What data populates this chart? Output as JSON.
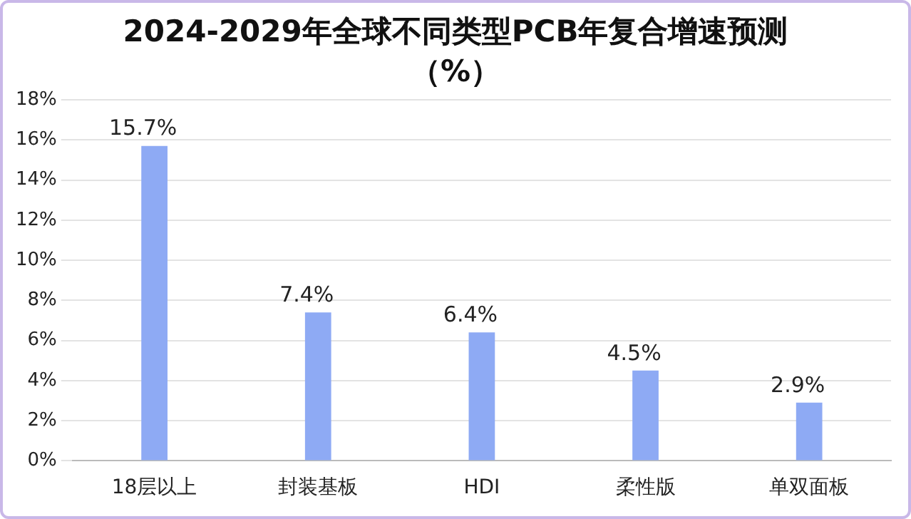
{
  "chart_data": {
    "type": "bar",
    "title": "2024-2029年全球不同类型PCB年复合增速预测（%）",
    "categories": [
      "18层以上",
      "封装基板",
      "HDI",
      "柔性版",
      "单双面板"
    ],
    "values": [
      15.7,
      7.4,
      6.4,
      4.5,
      2.9
    ],
    "value_labels": [
      "15.7%",
      "7.4%",
      "6.4%",
      "4.5%",
      "2.9%"
    ],
    "color": "#8eaaf4",
    "ylim": [
      0,
      18
    ],
    "yticks": [
      {
        "value": 0,
        "label": "0%"
      },
      {
        "value": 2,
        "label": "2%"
      },
      {
        "value": 4,
        "label": "4%"
      },
      {
        "value": 6,
        "label": "6%"
      },
      {
        "value": 8,
        "label": "8%"
      },
      {
        "value": 10,
        "label": "10%"
      },
      {
        "value": 12,
        "label": "12%"
      },
      {
        "value": 14,
        "label": "14%"
      },
      {
        "value": 16,
        "label": "16%"
      },
      {
        "value": 18,
        "label": "18%"
      }
    ],
    "grid": "y",
    "legend": false
  }
}
